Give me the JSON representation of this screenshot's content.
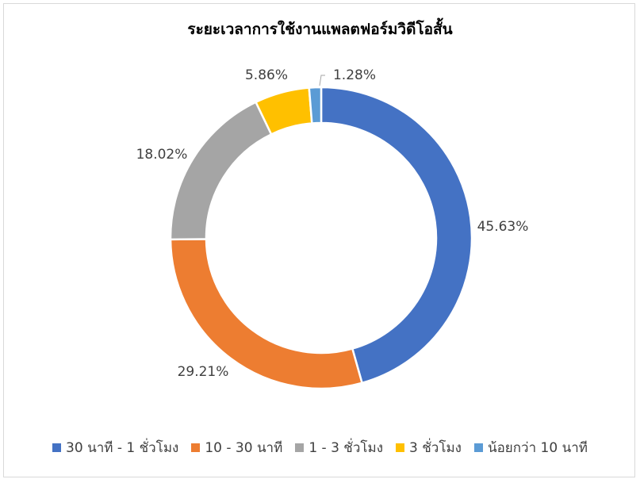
{
  "chart_data": {
    "type": "pie",
    "variant": "donut",
    "title": "ระยะเวลาการใช้งานแพลตฟอร์มวิดีโอสั้น",
    "categories": [
      "30 นาที - 1 ชั่วโมง",
      "10 - 30 นาที",
      "1 - 3 ชั่วโมง",
      "3 ชั่วโมง",
      "น้อยกว่า 10 นาที"
    ],
    "values": [
      45.63,
      29.21,
      18.02,
      5.86,
      1.28
    ],
    "labels": [
      "45.63%",
      "29.21%",
      "18.02%",
      "5.86%",
      "1.28%"
    ],
    "colors": [
      "#4472C4",
      "#ED7D31",
      "#A5A5A5",
      "#FFC000",
      "#5B9BD5"
    ],
    "legend_position": "bottom"
  }
}
